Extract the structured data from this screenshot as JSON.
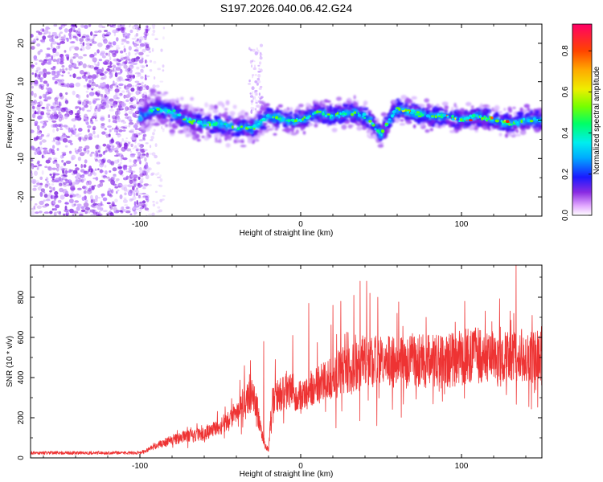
{
  "title": "S197.2026.040.06.42.G24",
  "chart_data": [
    {
      "type": "heatmap",
      "xlabel": "Height of straight line (km)",
      "ylabel": "Frequency (Hz)",
      "xlim": [
        -168,
        150
      ],
      "ylim": [
        -25,
        25
      ],
      "xticks": [
        -100,
        0,
        100
      ],
      "yticks": [
        -20,
        -10,
        0,
        10,
        20
      ],
      "grid": false,
      "colorbar": {
        "label": "Normalized spectral amplitude",
        "range": [
          0,
          0.93
        ],
        "ticks": [
          0.0,
          0.2,
          0.4,
          0.6,
          0.8
        ]
      },
      "ridge": {
        "x": [
          -100,
          -90,
          -80,
          -70,
          -60,
          -50,
          -40,
          -30,
          -20,
          -10,
          0,
          10,
          20,
          30,
          40,
          45,
          50,
          55,
          60,
          70,
          80,
          90,
          100,
          110,
          120,
          130,
          140,
          150
        ],
        "y": [
          1,
          3,
          2,
          0,
          -1,
          -1,
          -2,
          -2,
          1,
          0,
          0,
          2,
          1,
          2,
          1,
          -1,
          -4,
          0,
          3,
          2,
          1,
          1,
          0,
          1,
          0,
          -1,
          0,
          0
        ]
      }
    },
    {
      "type": "line",
      "xlabel": "Height of straight line (km)",
      "ylabel": "SNR (10 * v/v)",
      "xlim": [
        -168,
        150
      ],
      "ylim": [
        0,
        960
      ],
      "xticks": [
        -100,
        0,
        100
      ],
      "yticks": [
        0,
        200,
        400,
        600,
        800
      ],
      "grid": false,
      "series_color": "#ee3333",
      "envelope": {
        "x": [
          -168,
          -120,
          -100,
          -95,
          -90,
          -80,
          -70,
          -60,
          -50,
          -45,
          -40,
          -35,
          -30,
          -27,
          -25,
          -22,
          -20,
          -18,
          -15,
          -12,
          -10,
          -5,
          0,
          5,
          10,
          15,
          20,
          25,
          30,
          40,
          50,
          60,
          70,
          80,
          90,
          100,
          110,
          120,
          130,
          140,
          150
        ],
        "y": [
          25,
          25,
          25,
          40,
          60,
          90,
          110,
          120,
          160,
          180,
          250,
          280,
          320,
          240,
          150,
          60,
          40,
          280,
          300,
          320,
          340,
          330,
          300,
          330,
          360,
          380,
          400,
          430,
          450,
          470,
          480,
          470,
          480,
          480,
          480,
          500,
          510,
          490,
          500,
          510,
          490
        ]
      },
      "peaks": {
        "x": [
          -23,
          -5,
          5,
          20,
          25,
          33,
          37,
          41,
          43,
          48,
          60,
          78,
          102,
          134,
          144
        ],
        "y": [
          580,
          610,
          770,
          760,
          780,
          810,
          880,
          880,
          820,
          800,
          720,
          700,
          780,
          960,
          710
        ]
      }
    }
  ]
}
